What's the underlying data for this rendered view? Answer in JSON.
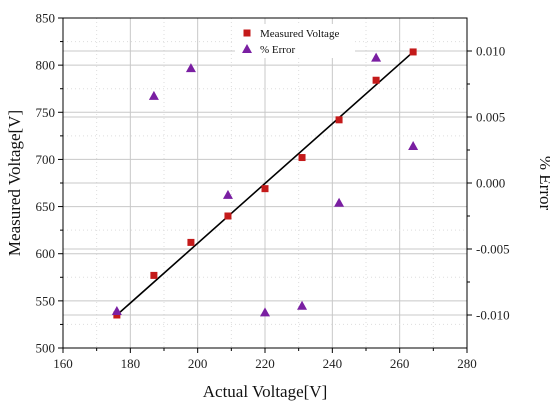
{
  "chart_data": {
    "type": "scatter",
    "xlabel": "Actual Voltage[V]",
    "ylabel": "Measured Voltage[V]",
    "y2label": "% Error",
    "xlim": [
      160,
      280
    ],
    "ylim": [
      500,
      850
    ],
    "y2lim": [
      -0.0125,
      0.0125
    ],
    "x_ticks": [
      "160",
      "180",
      "200",
      "220",
      "240",
      "260",
      "280"
    ],
    "y_ticks": [
      "500",
      "550",
      "600",
      "650",
      "700",
      "750",
      "800",
      "850"
    ],
    "y2_ticks": [
      "-0.010",
      "-0.005",
      "0.000",
      "0.005",
      "0.010"
    ],
    "grid": true,
    "legend_position": "top-center",
    "series": [
      {
        "name": "Measured Voltage",
        "axis": "left",
        "marker": "square",
        "color": "#c41a1a",
        "x": [
          176,
          187,
          198,
          209,
          220,
          231,
          242,
          253,
          264
        ],
        "y": [
          535,
          577,
          612,
          640,
          669,
          702,
          742,
          784,
          814
        ]
      },
      {
        "name": "% Error",
        "axis": "right",
        "marker": "triangle",
        "color": "#7a1fa2",
        "x": [
          176,
          187,
          198,
          209,
          220,
          231,
          242,
          253,
          264
        ],
        "y": [
          -0.0097,
          0.0066,
          0.0087,
          -0.0009,
          -0.0098,
          -0.0093,
          -0.0015,
          0.0095,
          0.0028
        ]
      }
    ],
    "fit_line": {
      "x": [
        176,
        264
      ],
      "y": [
        535,
        814
      ],
      "color": "#000000"
    }
  }
}
